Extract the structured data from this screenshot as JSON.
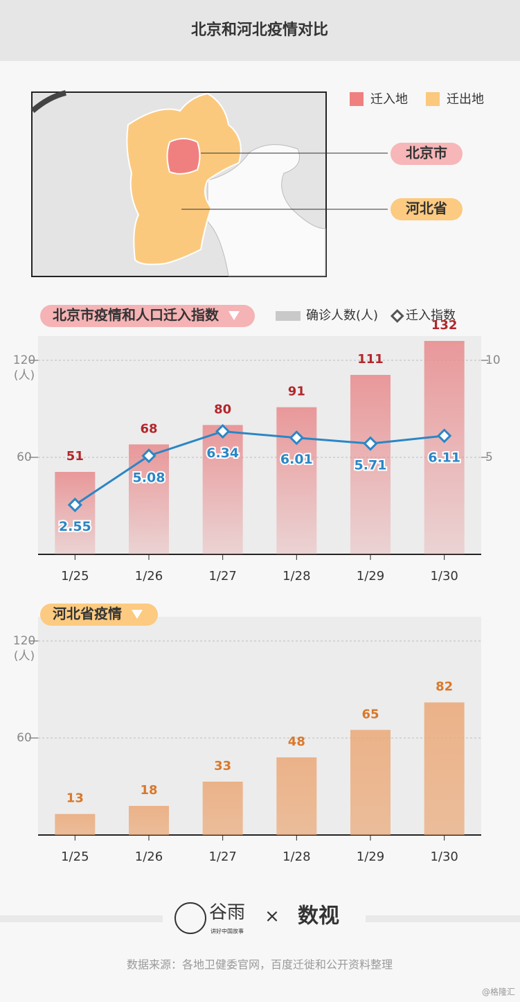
{
  "title": "北京和河北疫情对比",
  "map": {
    "legend": [
      {
        "name": "迁入地",
        "color": "#f08080"
      },
      {
        "name": "迁出地",
        "color": "#fbc97e"
      }
    ],
    "labels": [
      {
        "text": "北京市",
        "color": "#f7b6b8"
      },
      {
        "text": "河北省",
        "color": "#fcca80"
      }
    ]
  },
  "chart_data": [
    {
      "type": "bar",
      "title": "北京市疫情和人口迁入指数",
      "title_color": "#f5b3b5",
      "categories": [
        "1/25",
        "1/26",
        "1/27",
        "1/28",
        "1/29",
        "1/30"
      ],
      "series": [
        {
          "name": "确诊人数(人)",
          "color": "#e8898b",
          "label_color": "#b3262b",
          "values": [
            51,
            68,
            80,
            91,
            111,
            132
          ]
        },
        {
          "name": "迁入指数",
          "type": "line",
          "axis": "y2",
          "color": "#2b86c5",
          "values": [
            2.55,
            5.08,
            6.34,
            6.01,
            5.71,
            6.11
          ]
        }
      ],
      "ylim": [
        0,
        135
      ],
      "yticks": [
        60,
        120
      ],
      "y_unit": "(人)",
      "y2lim": [
        0,
        11.25
      ],
      "y2ticks": [
        5,
        10
      ],
      "grid": true
    },
    {
      "type": "bar",
      "title": "河北省疫情",
      "title_color": "#fcca80",
      "categories": [
        "1/25",
        "1/26",
        "1/27",
        "1/28",
        "1/29",
        "1/30"
      ],
      "values": [
        13,
        18,
        33,
        48,
        65,
        82
      ],
      "color": "#eba877",
      "label_color": "#d9782b",
      "ylim": [
        0,
        135
      ],
      "yticks": [
        60,
        120
      ],
      "y_unit": "(人)",
      "grid": true
    }
  ],
  "footer": {
    "logo1": "谷雨",
    "logo1_tagline": "讲好中国故事",
    "cross": "×",
    "logo2": "数视",
    "source": "数据来源：各地卫健委官网，百度迁徙和公开资料整理",
    "credit": "@格隆汇"
  }
}
